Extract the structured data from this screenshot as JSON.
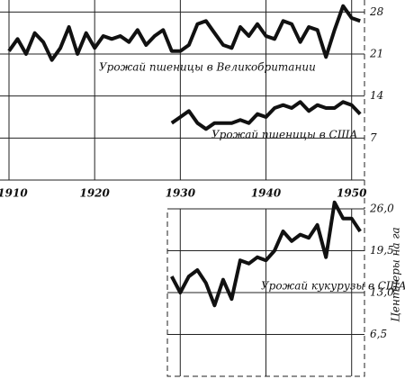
{
  "chart_data": [
    {
      "type": "line",
      "xlim": [
        1910,
        1951.5
      ],
      "xticks": [
        1910,
        1920,
        1930,
        1940,
        1950
      ],
      "ylim": [
        0,
        30
      ],
      "yticks": [
        7,
        14,
        21,
        28
      ],
      "grid": true,
      "series": [
        {
          "name": "Урожай пшеницы в Великобритании",
          "color": "#111111",
          "x": [
            1910,
            1911,
            1912,
            1913,
            1914,
            1915,
            1916,
            1917,
            1918,
            1919,
            1920,
            1921,
            1922,
            1923,
            1924,
            1925,
            1926,
            1927,
            1928,
            1929,
            1930,
            1931,
            1932,
            1933,
            1934,
            1935,
            1936,
            1937,
            1938,
            1939,
            1940,
            1941,
            1942,
            1943,
            1944,
            1945,
            1946,
            1947,
            1948,
            1949,
            1950,
            1951
          ],
          "values": [
            21.5,
            23.5,
            21,
            24.5,
            23,
            20,
            22,
            25.5,
            21,
            24.5,
            22,
            24,
            23.5,
            24,
            23,
            25,
            22.5,
            24,
            25,
            21.5,
            21.5,
            22.5,
            26,
            26.5,
            24.5,
            22.5,
            22,
            25.5,
            24,
            26,
            24,
            23.5,
            26.5,
            26,
            23,
            25.5,
            25,
            20.5,
            25,
            29,
            27,
            26.5
          ]
        },
        {
          "name": "Урожай пшеницы в США",
          "color": "#111111",
          "x": [
            1929,
            1930,
            1931,
            1932,
            1933,
            1934,
            1935,
            1936,
            1937,
            1938,
            1939,
            1940,
            1941,
            1942,
            1943,
            1944,
            1945,
            1946,
            1947,
            1948,
            1949,
            1950,
            1951
          ],
          "values": [
            9.5,
            10.5,
            11.5,
            9.5,
            8.5,
            9.5,
            9.5,
            9.5,
            10,
            9.5,
            11,
            10.5,
            12,
            12.5,
            12,
            13,
            11.5,
            12.5,
            12,
            12,
            13,
            12.5,
            11
          ]
        }
      ]
    },
    {
      "type": "line",
      "xlim": [
        1928.5,
        1951.5
      ],
      "ylim": [
        0,
        26
      ],
      "yticks": [
        {
          "value": 6.5,
          "label": "6,5"
        },
        {
          "value": 13,
          "label": "13,0"
        },
        {
          "value": 19.5,
          "label": "19,5"
        },
        {
          "value": 26,
          "label": "26,0"
        }
      ],
      "ylabel": "Центнеры на га",
      "grid": true,
      "series": [
        {
          "name": "Урожай кукурузы в США",
          "color": "#111111",
          "x": [
            1929,
            1930,
            1931,
            1932,
            1933,
            1934,
            1935,
            1936,
            1937,
            1938,
            1939,
            1940,
            1941,
            1942,
            1943,
            1944,
            1945,
            1946,
            1947,
            1948,
            1949,
            1950,
            1951
          ],
          "values": [
            15.5,
            13,
            15.5,
            16.5,
            14.5,
            11,
            15,
            12,
            18,
            17.5,
            18.5,
            18,
            19.5,
            22.5,
            21,
            22,
            21.5,
            23.5,
            18.5,
            27,
            24.5,
            24.5,
            22.5
          ]
        }
      ]
    }
  ]
}
